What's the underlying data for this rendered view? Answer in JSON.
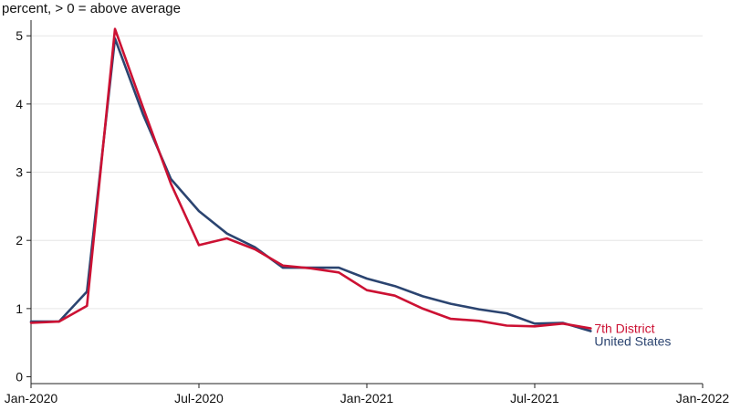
{
  "chart_data": {
    "type": "line",
    "title": "",
    "ylabel": "percent, > 0 = above average",
    "xlabel": "",
    "x_ticks": [
      "2020-01",
      "2020-07",
      "2021-01",
      "2021-07",
      "2022-01"
    ],
    "x_tick_labels": [
      "Jan-2020",
      "Jul-2020",
      "Jan-2021",
      "Jul-2021",
      "Jan-2022"
    ],
    "xlim": [
      "2020-01",
      "2022-01"
    ],
    "y_ticks": [
      0,
      1,
      2,
      3,
      4,
      5
    ],
    "y_tick_labels": [
      "0",
      "1",
      "2",
      "3",
      "4",
      "5"
    ],
    "ylim": [
      -0.1,
      5.15
    ],
    "grid": "horizontal",
    "x": [
      "2020-01",
      "2020-02",
      "2020-03",
      "2020-04",
      "2020-05",
      "2020-06",
      "2020-07",
      "2020-08",
      "2020-09",
      "2020-10",
      "2020-11",
      "2020-12",
      "2021-01",
      "2021-02",
      "2021-03",
      "2021-04",
      "2021-05",
      "2021-06",
      "2021-07",
      "2021-08",
      "2021-09"
    ],
    "series": [
      {
        "name": "United States",
        "color": "#2b4470",
        "values": [
          0.81,
          0.81,
          1.25,
          4.96,
          3.85,
          2.9,
          2.43,
          2.1,
          1.9,
          1.6,
          1.6,
          1.6,
          1.44,
          1.33,
          1.18,
          1.07,
          0.99,
          0.93,
          0.78,
          0.79,
          0.67
        ]
      },
      {
        "name": "7th District",
        "color": "#cc1133",
        "values": [
          0.79,
          0.81,
          1.04,
          5.1,
          3.95,
          2.83,
          1.93,
          2.03,
          1.87,
          1.63,
          1.59,
          1.53,
          1.27,
          1.19,
          1.0,
          0.85,
          0.82,
          0.75,
          0.74,
          0.78,
          0.71
        ]
      }
    ]
  }
}
